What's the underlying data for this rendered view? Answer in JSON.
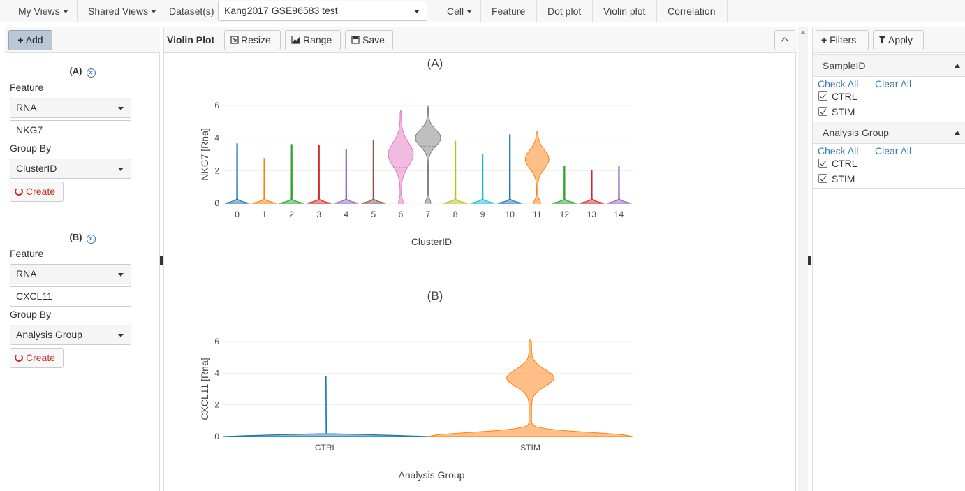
{
  "nav": {
    "my_views": "My Views",
    "shared_views": "Shared Views",
    "dataset_label": "Dataset(s)",
    "dataset_value": "Kang2017 GSE96583 test",
    "cell": "Cell",
    "feature": "Feature",
    "dot_plot": "Dot plot",
    "violin_plot": "Violin plot",
    "correlation": "Correlation"
  },
  "left": {
    "add_label": "Add",
    "plots": [
      {
        "label": "(A)",
        "feature_label": "Feature",
        "feature_type": "RNA",
        "feature_value": "NKG7",
        "group_by_label": "Group By",
        "group_by_value": "ClusterID",
        "create_label": "Create"
      },
      {
        "label": "(B)",
        "feature_label": "Feature",
        "feature_type": "RNA",
        "feature_value": "CXCL11",
        "group_by_label": "Group By",
        "group_by_value": "Analysis Group",
        "create_label": "Create"
      }
    ]
  },
  "center": {
    "title": "Violin Plot",
    "resize_label": "Resize",
    "range_label": "Range",
    "save_label": "Save"
  },
  "right": {
    "filters_label": "Filters",
    "apply_label": "Apply",
    "sections": [
      {
        "title": "SampleID",
        "check_all": "Check All",
        "clear_all": "Clear All",
        "options": [
          "CTRL",
          "STIM"
        ]
      },
      {
        "title": "Analysis Group",
        "check_all": "Check All",
        "clear_all": "Clear All",
        "options": [
          "CTRL",
          "STIM"
        ]
      }
    ]
  },
  "colors": {
    "plotly": [
      "#1f77b4",
      "#ff7f0e",
      "#2ca02c",
      "#d62728",
      "#9467bd",
      "#8c564b",
      "#e377c2",
      "#7f7f7f",
      "#bcbd22",
      "#17becf"
    ]
  },
  "chart_data": [
    {
      "type": "violin",
      "title": "(A)",
      "xlabel": "ClusterID",
      "ylabel": "NKG7 [Rna]",
      "ylim": [
        0,
        6
      ],
      "yticks": [
        0,
        2,
        4,
        6
      ],
      "categories": [
        "0",
        "1",
        "2",
        "3",
        "4",
        "5",
        "6",
        "7",
        "8",
        "9",
        "10",
        "11",
        "12",
        "13",
        "14"
      ],
      "max_values": [
        3.65,
        2.75,
        3.6,
        3.55,
        3.3,
        3.85,
        5.7,
        5.95,
        3.8,
        3.0,
        4.2,
        4.4,
        2.25,
        2.0,
        2.25
      ],
      "medians": [
        0,
        0,
        0,
        0,
        0,
        0,
        2.2,
        3.5,
        0,
        0,
        0,
        1.3,
        0,
        0,
        0
      ]
    },
    {
      "type": "violin",
      "title": "(B)",
      "xlabel": "Analysis Group",
      "ylabel": "CXCL11 [Rna]",
      "ylim": [
        0,
        6
      ],
      "yticks": [
        0,
        2,
        4,
        6
      ],
      "categories": [
        "CTRL",
        "STIM"
      ],
      "max_values": [
        3.8,
        6.1
      ]
    }
  ]
}
